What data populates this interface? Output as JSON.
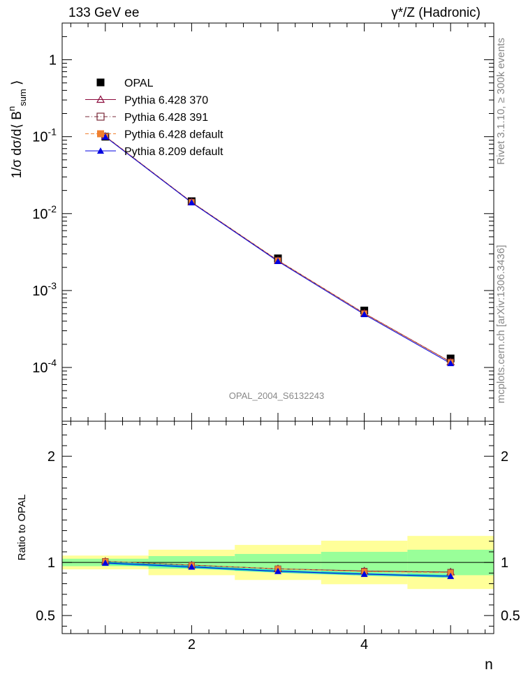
{
  "header": {
    "left": "133 GeV ee",
    "right": "γ*/Z (Hadronic)"
  },
  "side_labels": {
    "rivet": "Rivet 3.1.10, ≥ 300k events",
    "mcplots": "mcplots.cern.ch [arXiv:1306.3436]"
  },
  "analysis_id": "OPAL_2004_S6132243",
  "chart_data": [
    {
      "type": "line",
      "panel": "main",
      "ylabel": "1/σ dσ/d⟨ B^n_sum ⟩",
      "yscale": "log",
      "ylim": [
        2e-05,
        3
      ],
      "xlim": [
        0.5,
        5.5
      ],
      "y_ticks": [
        {
          "value": 1,
          "label": "1"
        },
        {
          "value": 0.1,
          "label": "10^-1"
        },
        {
          "value": 0.01,
          "label": "10^-2"
        },
        {
          "value": 0.001,
          "label": "10^-3"
        },
        {
          "value": 0.0001,
          "label": "10^-4"
        }
      ],
      "x": [
        1,
        2,
        3,
        4,
        5
      ],
      "legend_position": "top-left",
      "series": [
        {
          "name": "OPAL",
          "color": "#000000",
          "marker": "square-filled",
          "values": [
            0.1,
            0.0145,
            0.00262,
            0.00055,
            0.000131
          ]
        },
        {
          "name": "Pythia 6.428 370",
          "color": "#8b0a3c",
          "marker": "triangle-open",
          "line": "solid",
          "values": [
            0.101,
            0.0141,
            0.00246,
            0.000506,
            0.000118
          ]
        },
        {
          "name": "Pythia 6.428 391",
          "color": "#7a2a3a",
          "marker": "square-open",
          "line": "dashdot",
          "values": [
            0.101,
            0.0141,
            0.00246,
            0.000505,
            0.000118
          ]
        },
        {
          "name": "Pythia 6.428 default",
          "color": "#f08030",
          "marker": "square-filled",
          "line": "dashed",
          "values": [
            0.101,
            0.0141,
            0.00246,
            0.000502,
            0.000117
          ]
        },
        {
          "name": "Pythia 8.209 default",
          "color": "#0000e0",
          "marker": "triangle-filled",
          "line": "solid",
          "values": [
            0.0995,
            0.0139,
            0.0024,
            0.00049,
            0.000113
          ]
        }
      ]
    },
    {
      "type": "line",
      "panel": "ratio",
      "ylabel": "Ratio to OPAL",
      "xlabel": "n",
      "ylim": [
        0.33,
        2.33
      ],
      "xlim": [
        0.5,
        5.5
      ],
      "y_ticks": [
        {
          "value": 0.5,
          "label": "0.5"
        },
        {
          "value": 1,
          "label": "1"
        },
        {
          "value": 2,
          "label": "2"
        }
      ],
      "x_ticks": [
        {
          "value": 2,
          "label": "2"
        },
        {
          "value": 4,
          "label": "4"
        }
      ],
      "x": [
        1,
        2,
        3,
        4,
        5
      ],
      "bands": {
        "bins": [
          [
            0.5,
            1.5
          ],
          [
            1.5,
            2.5
          ],
          [
            2.5,
            3.5
          ],
          [
            3.5,
            4.5
          ],
          [
            4.5,
            5.5
          ]
        ],
        "yellow": [
          [
            0.935,
            1.065
          ],
          [
            0.88,
            1.12
          ],
          [
            0.835,
            1.165
          ],
          [
            0.795,
            1.205
          ],
          [
            0.75,
            1.25
          ]
        ],
        "green": [
          [
            0.965,
            1.035
          ],
          [
            0.94,
            1.06
          ],
          [
            0.92,
            1.08
          ],
          [
            0.9,
            1.1
          ],
          [
            0.88,
            1.12
          ]
        ],
        "yellow_color": "#ffff99",
        "green_color": "#99ff99"
      },
      "series": [
        {
          "name": "Pythia 6.428 370",
          "color": "#8b0a3c",
          "values": [
            1.01,
            0.975,
            0.94,
            0.92,
            0.91
          ]
        },
        {
          "name": "Pythia 6.428 391",
          "color": "#7a2a3a",
          "values": [
            1.01,
            0.975,
            0.94,
            0.918,
            0.908
          ]
        },
        {
          "name": "Pythia 6.428 default",
          "color": "#f08030",
          "values": [
            1.01,
            0.973,
            0.94,
            0.915,
            0.905
          ]
        },
        {
          "name": "Pythia 8.209 default",
          "color": "#0000e0",
          "band_color": "#00cccc",
          "values": [
            0.995,
            0.958,
            0.917,
            0.89,
            0.87
          ]
        }
      ]
    }
  ]
}
